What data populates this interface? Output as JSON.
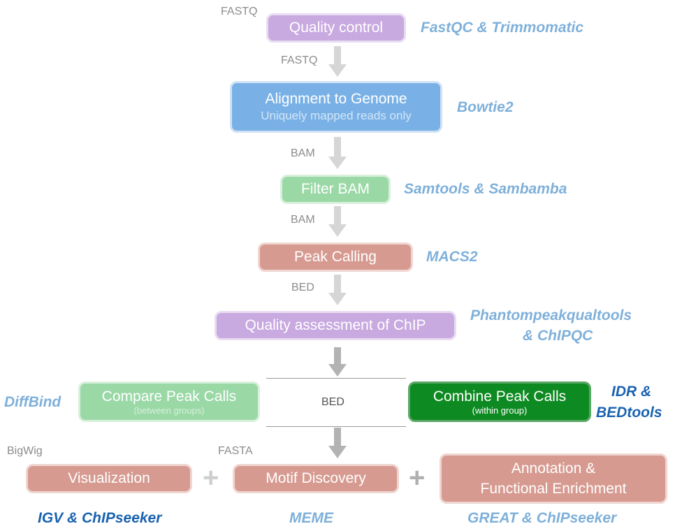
{
  "formats": {
    "top": "FASTQ",
    "after_qc": "FASTQ",
    "after_align": "BAM",
    "after_filter": "BAM",
    "after_peak": "BED",
    "center": "BED",
    "bigwig": "BigWig",
    "fasta": "FASTA"
  },
  "steps": {
    "quality_control": {
      "label": "Quality control",
      "tool": "FastQC & Trimmomatic"
    },
    "alignment": {
      "label": "Alignment to Genome",
      "sub": "Uniquely mapped reads only",
      "tool": "Bowtie2"
    },
    "filter_bam": {
      "label": "Filter BAM",
      "tool": "Samtools & Sambamba"
    },
    "peak_calling": {
      "label": "Peak Calling",
      "tool": "MACS2"
    },
    "quality_assessment": {
      "label": "Quality assessment of ChIP",
      "tool_line1": "Phantompeakqualtools",
      "tool_line2": "& ChIPQC"
    },
    "compare": {
      "label": "Compare Peak Calls",
      "sub": "(between groups)",
      "tool": "DiffBind"
    },
    "combine": {
      "label": "Combine Peak Calls",
      "sub": "(within group)",
      "tool_line1": "IDR &",
      "tool_line2": "BEDtools"
    },
    "visualization": {
      "label": "Visualization",
      "tool": "IGV & ChIPseeker"
    },
    "motif": {
      "label": "Motif Discovery",
      "tool": "MEME"
    },
    "annotation": {
      "label_line1": "Annotation &",
      "label_line2": "Functional Enrichment",
      "tool": "GREAT & ChIPseeker"
    }
  },
  "plus_sign": "+",
  "colors": {
    "purple": "#c8a9e0",
    "blue": "#79b1e6",
    "green_light": "#9ad8a6",
    "red_light": "#d69a90",
    "green_dark": "#0e8a22",
    "tool_light": "#7fb0da",
    "tool_dark": "#1a63b0",
    "arrow": "#d6d6d6"
  }
}
